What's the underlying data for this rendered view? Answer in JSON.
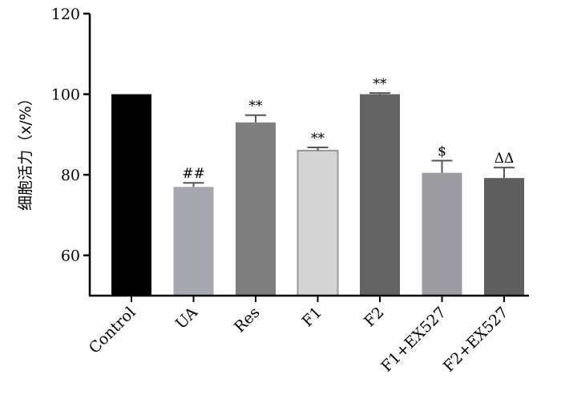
{
  "chart_data": {
    "type": "bar",
    "title": "",
    "xlabel": "",
    "ylabel": "细胞活力（x/%）",
    "ylim": [
      50,
      120
    ],
    "yticks": [
      60,
      80,
      100,
      120
    ],
    "categories": [
      "Control",
      "UA",
      "Res",
      "F1",
      "F2",
      "F1+EX527",
      "F2+EX527"
    ],
    "values": [
      100,
      77,
      93,
      86,
      100,
      80.5,
      79.2
    ],
    "errors": [
      0,
      1.0,
      1.8,
      0.8,
      0.3,
      3.0,
      2.6
    ],
    "annotations": [
      "",
      "##",
      "**",
      "**",
      "**",
      "$",
      "ΔΔ"
    ],
    "colors": [
      "#000000",
      "#a7a7af",
      "#7e7e7e",
      "#d4d4d4",
      "#636363",
      "#9c9ca2",
      "#5f5f5f"
    ],
    "grid": false
  }
}
